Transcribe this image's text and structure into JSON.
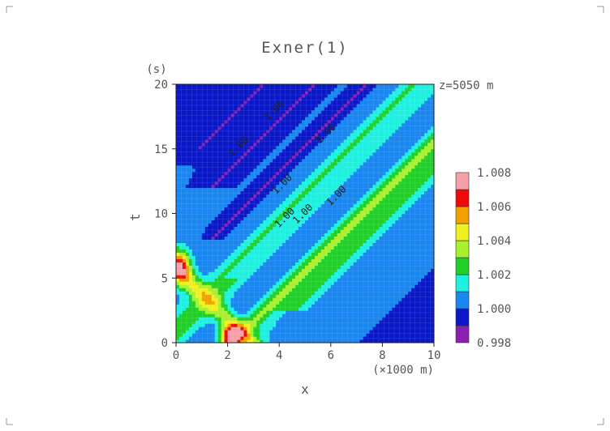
{
  "chart_data": {
    "type": "heatmap",
    "title": "Exner(1)",
    "xlabel": "x",
    "x_unit": "(×1000 m)",
    "ylabel": "t",
    "y_unit": "(s)",
    "annotation": "z=5050 m",
    "xlim": [
      0,
      10
    ],
    "ylim": [
      0,
      20
    ],
    "x_ticks": [
      "0",
      "2",
      "4",
      "6",
      "8",
      "10"
    ],
    "y_ticks": [
      "0",
      "5",
      "10",
      "15",
      "20"
    ],
    "contour_labels": [
      "1.00",
      "1.00",
      "1.00",
      "1.00",
      "1.00",
      "1.00",
      "1.00"
    ],
    "colorbar": {
      "levels": [
        "0.998",
        "1.000",
        "1.002",
        "1.004",
        "1.006",
        "1.008"
      ],
      "colors": [
        "#8a1fb0",
        "#0a18c8",
        "#1a86f0",
        "#1ff0e0",
        "#20d028",
        "#a8f030",
        "#f0f020",
        "#f0a000",
        "#f00a0a",
        "#f5a0a8"
      ]
    },
    "features": {
      "background_value": 1.0,
      "max_value": 1.007,
      "min_value": 0.998,
      "peak_1": {
        "x": 0.15,
        "t": 5.9
      },
      "peak_2": {
        "x": 2.1,
        "t": 0.5
      }
    }
  }
}
